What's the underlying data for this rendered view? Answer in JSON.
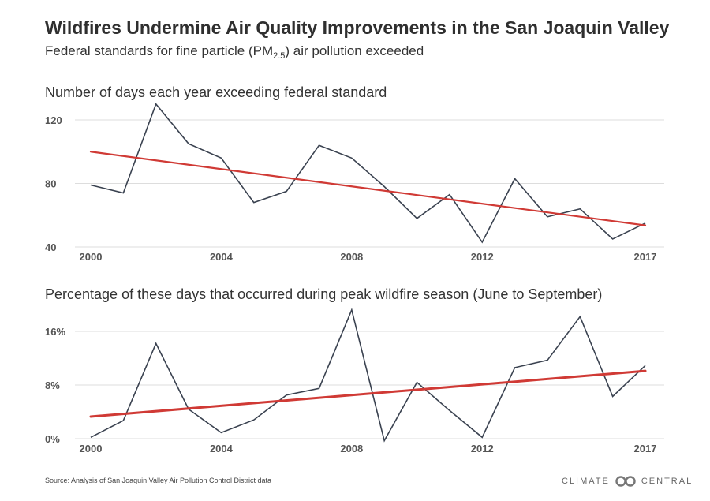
{
  "header": {
    "title": "Wildfires Undermine Air Quality Improvements in the San Joaquin Valley",
    "subtitle_pre": "Federal standards for fine particle (PM",
    "subtitle_sub": "2.5",
    "subtitle_post": ") air pollution exceeded"
  },
  "footer": {
    "source_label": "Source:",
    "source_text": "Analysis of San Joaquin Valley Air Pollution Control District data",
    "logo_left": "CLIMATE",
    "logo_right": "CENTRAL"
  },
  "colors": {
    "series": "#3a4250",
    "trend": "#d03a35",
    "grid": "#dddddd"
  },
  "chart_data": [
    {
      "type": "line",
      "title": "Number of days each year exceeding federal standard",
      "x": [
        2000,
        2001,
        2002,
        2003,
        2004,
        2005,
        2006,
        2007,
        2008,
        2009,
        2010,
        2011,
        2012,
        2013,
        2014,
        2015,
        2016,
        2017
      ],
      "series": [
        {
          "values": [
            79,
            74,
            130,
            105,
            96,
            68,
            75,
            104,
            96,
            78,
            58,
            73,
            43,
            83,
            59,
            64,
            45,
            55
          ]
        },
        {
          "values": [
            100,
            97.3,
            94.5,
            91.8,
            89.1,
            86.4,
            83.6,
            80.9,
            78.2,
            75.4,
            72.7,
            70.0,
            67.2,
            64.5,
            61.8,
            59.0,
            56.3,
            53.6
          ]
        }
      ],
      "xticks": [
        "2000",
        "2004",
        "2008",
        "2012",
        "2017"
      ],
      "xtick_values": [
        2000,
        2004,
        2008,
        2012,
        2017
      ],
      "yticks": [
        "40",
        "80",
        "120"
      ],
      "ytick_values": [
        40,
        80,
        120
      ],
      "ylim": [
        40,
        130
      ],
      "grid": true
    },
    {
      "type": "line",
      "title": "Percentage of these days that occurred during peak wildfire season (June to September)",
      "x": [
        2000,
        2001,
        2002,
        2003,
        2004,
        2005,
        2006,
        2007,
        2008,
        2009,
        2010,
        2011,
        2012,
        2013,
        2014,
        2015,
        2016,
        2017
      ],
      "series": [
        {
          "values": [
            0.2,
            2.7,
            14.2,
            4.4,
            0.9,
            2.8,
            6.5,
            7.5,
            19.2,
            -0.3,
            8.4,
            4.2,
            0.2,
            10.6,
            11.7,
            18.2,
            6.3,
            10.9
          ]
        },
        {
          "values": [
            3.3,
            3.7,
            4.1,
            4.5,
            4.9,
            5.3,
            5.7,
            6.1,
            6.5,
            6.9,
            7.3,
            7.7,
            8.1,
            8.5,
            8.9,
            9.3,
            9.7,
            10.1
          ]
        }
      ],
      "xticks": [
        "2000",
        "2004",
        "2008",
        "2012",
        "2017"
      ],
      "xtick_values": [
        2000,
        2004,
        2008,
        2012,
        2017
      ],
      "yticks": [
        "0%",
        "8%",
        "16%"
      ],
      "ytick_values": [
        0,
        8,
        16
      ],
      "ylim": [
        0,
        19.2
      ],
      "grid": true
    }
  ]
}
